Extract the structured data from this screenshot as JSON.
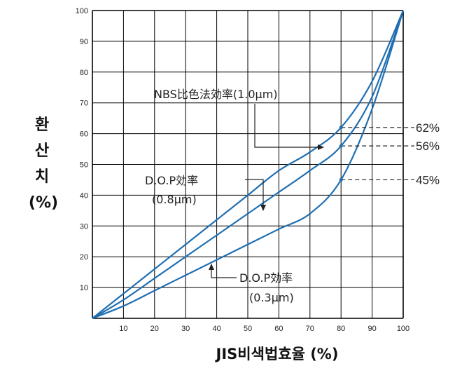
{
  "chart_data": {
    "type": "line",
    "xlabel": "JIS비색법효율 (%)",
    "ylabel_lines": [
      "환",
      "산",
      "치",
      "(%)"
    ],
    "xlim": [
      0,
      100
    ],
    "ylim": [
      0,
      100
    ],
    "x_ticks": [
      10,
      20,
      30,
      40,
      50,
      60,
      70,
      80,
      90,
      100
    ],
    "y_ticks": [
      10,
      20,
      30,
      40,
      50,
      60,
      70,
      80,
      90,
      100
    ],
    "grid": true,
    "series": [
      {
        "name": "NBS比色法効率(1.0μm)",
        "x": [
          0,
          10,
          20,
          30,
          40,
          50,
          60,
          70,
          80,
          90,
          100
        ],
        "y": [
          0,
          8,
          16,
          24,
          32,
          40,
          48,
          54,
          62,
          77,
          100
        ]
      },
      {
        "name": "D.O.P効率(0.8μm)",
        "x": [
          0,
          10,
          20,
          30,
          40,
          50,
          60,
          70,
          80,
          90,
          100
        ],
        "y": [
          0,
          6,
          13,
          20,
          27,
          34,
          41,
          48,
          56,
          72,
          100
        ]
      },
      {
        "name": "D.O.P効率(0.3μm)",
        "x": [
          0,
          10,
          20,
          30,
          40,
          50,
          60,
          70,
          80,
          90,
          100
        ],
        "y": [
          0,
          4,
          9,
          14,
          19,
          24,
          29,
          34,
          45,
          68,
          100
        ]
      }
    ],
    "annotations": [
      {
        "line1": "NBS比色法効率(1.0μm)"
      },
      {
        "line1": "D.O.P効率",
        "line2": "(0.8μm)"
      },
      {
        "line1": "D.O.P効率",
        "line2": "(0.3μm)"
      }
    ],
    "markers": [
      {
        "x": 80,
        "y": 62,
        "label": "62%"
      },
      {
        "x": 80,
        "y": 56,
        "label": "56%"
      },
      {
        "x": 80,
        "y": 45,
        "label": "45%"
      }
    ]
  },
  "colors": {
    "curve": "#1f6fb2",
    "grid": "#000000",
    "text": "#222222"
  }
}
